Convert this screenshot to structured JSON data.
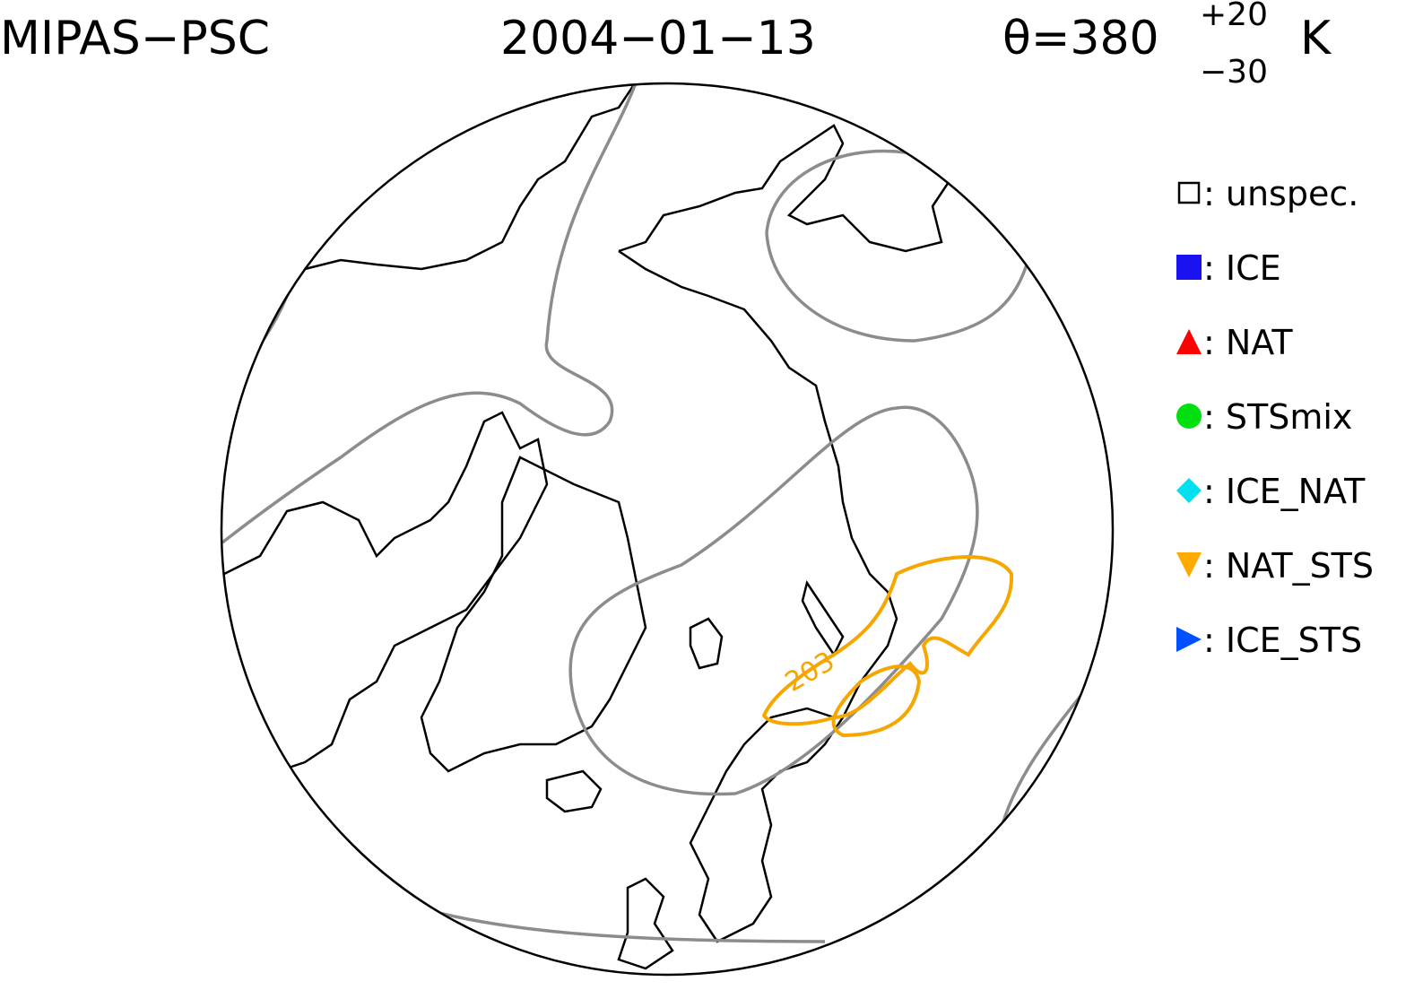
{
  "header": {
    "instrument": "MIPAS−PSC",
    "date": "2004−01−13",
    "theta": "θ=380",
    "theta_upper": "+20",
    "theta_lower": "−30",
    "unit": "K"
  },
  "legend": [
    {
      "shape": "square-open",
      "color": "#000000",
      "label": ": unspec."
    },
    {
      "shape": "square",
      "color": "#1a12f0",
      "label": ": ICE"
    },
    {
      "shape": "triangle-up",
      "color": "#ff0000",
      "label": ": NAT"
    },
    {
      "shape": "circle",
      "color": "#00e010",
      "label": ": STSmix"
    },
    {
      "shape": "diamond",
      "color": "#00e0f0",
      "label": ": ICE_NAT"
    },
    {
      "shape": "triangle-down",
      "color": "#ffaa00",
      "label": ": NAT_STS"
    },
    {
      "shape": "triangle-right",
      "color": "#0050ff",
      "label": ": ICE_STS"
    }
  ],
  "contour_label": "203"
}
